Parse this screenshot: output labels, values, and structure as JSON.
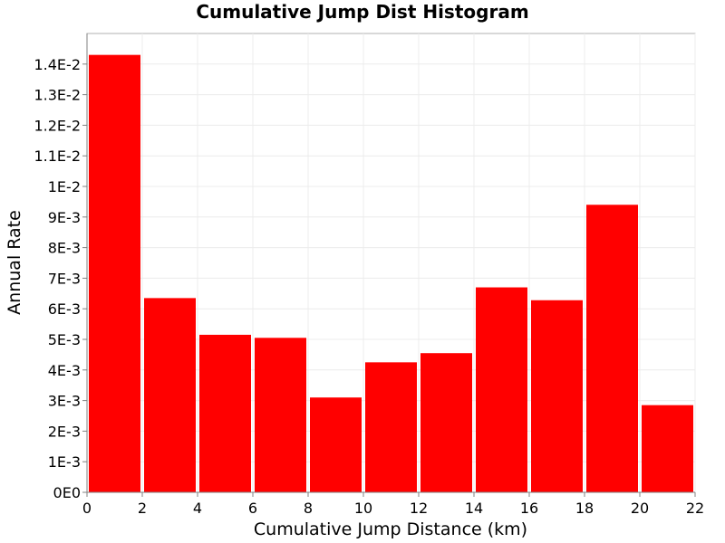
{
  "chart_data": {
    "type": "bar",
    "title": "Cumulative Jump Dist Histogram",
    "xlabel": "Cumulative Jump Distance (km)",
    "ylabel": "Annual Rate",
    "xlim": [
      0,
      22
    ],
    "ylim": [
      0,
      0.015
    ],
    "grid": true,
    "bar_color": "#ff0000",
    "bars": [
      {
        "x_start": 0,
        "x_end": 2,
        "value": 0.0143
      },
      {
        "x_start": 2,
        "x_end": 4,
        "value": 0.00635
      },
      {
        "x_start": 4,
        "x_end": 6,
        "value": 0.00515
      },
      {
        "x_start": 6,
        "x_end": 8,
        "value": 0.00505
      },
      {
        "x_start": 8,
        "x_end": 10,
        "value": 0.0031
      },
      {
        "x_start": 10,
        "x_end": 12,
        "value": 0.00425
      },
      {
        "x_start": 12,
        "x_end": 14,
        "value": 0.00455
      },
      {
        "x_start": 14,
        "x_end": 16,
        "value": 0.0067
      },
      {
        "x_start": 16,
        "x_end": 18,
        "value": 0.00628
      },
      {
        "x_start": 18,
        "x_end": 20,
        "value": 0.0094
      },
      {
        "x_start": 20,
        "x_end": 22,
        "value": 0.00285
      }
    ],
    "x_ticks": [
      {
        "value": 0,
        "label": "0"
      },
      {
        "value": 2,
        "label": "2"
      },
      {
        "value": 4,
        "label": "4"
      },
      {
        "value": 6,
        "label": "6"
      },
      {
        "value": 8,
        "label": "8"
      },
      {
        "value": 10,
        "label": "10"
      },
      {
        "value": 12,
        "label": "12"
      },
      {
        "value": 14,
        "label": "14"
      },
      {
        "value": 16,
        "label": "16"
      },
      {
        "value": 18,
        "label": "18"
      },
      {
        "value": 20,
        "label": "20"
      },
      {
        "value": 22,
        "label": "22"
      }
    ],
    "y_ticks": [
      {
        "value": 0,
        "label": "0E0"
      },
      {
        "value": 0.001,
        "label": "1E-3"
      },
      {
        "value": 0.002,
        "label": "2E-3"
      },
      {
        "value": 0.003,
        "label": "3E-3"
      },
      {
        "value": 0.004,
        "label": "4E-3"
      },
      {
        "value": 0.005,
        "label": "5E-3"
      },
      {
        "value": 0.006,
        "label": "6E-3"
      },
      {
        "value": 0.007,
        "label": "7E-3"
      },
      {
        "value": 0.008,
        "label": "8E-3"
      },
      {
        "value": 0.009,
        "label": "9E-3"
      },
      {
        "value": 0.01,
        "label": "1E-2"
      },
      {
        "value": 0.011,
        "label": "1.1E-2"
      },
      {
        "value": 0.012,
        "label": "1.2E-2"
      },
      {
        "value": 0.013,
        "label": "1.3E-2"
      },
      {
        "value": 0.014,
        "label": "1.4E-2"
      }
    ]
  }
}
